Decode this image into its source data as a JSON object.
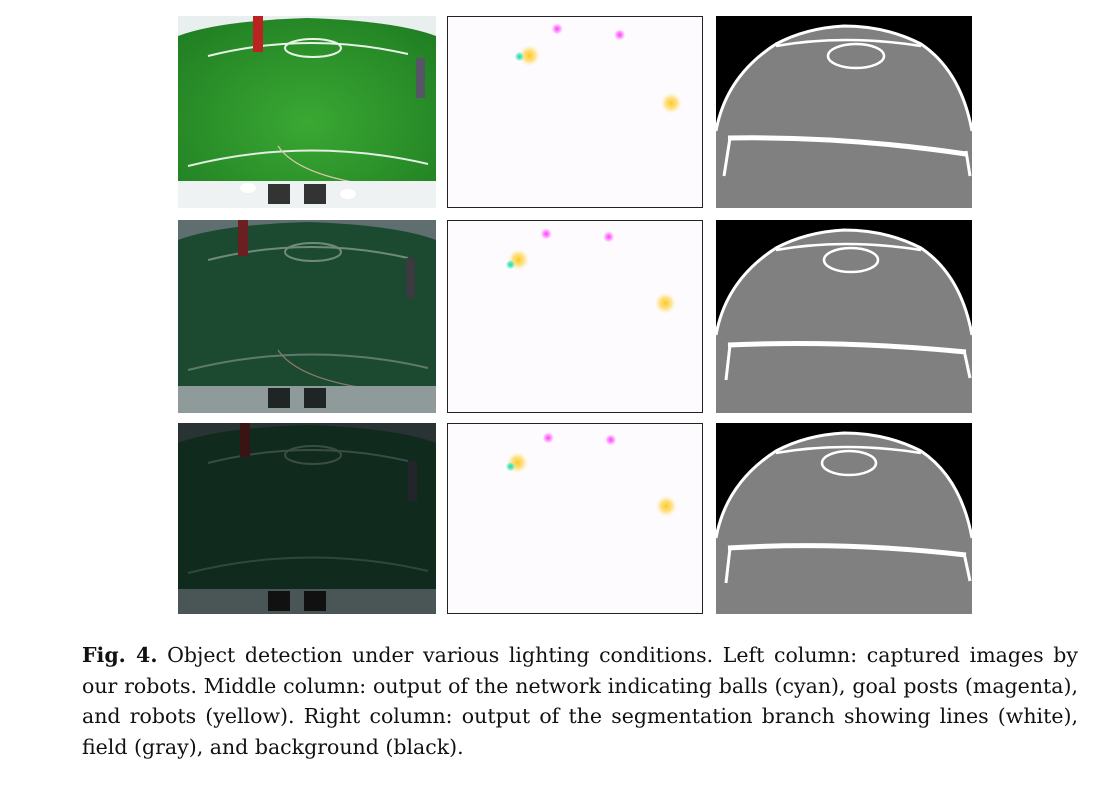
{
  "figure": {
    "label": "Fig. 4.",
    "caption": "Object detection under various lighting conditions. Left column: captured im­ages by our robots. Middle column: output of the network indicating balls (cyan), goal posts (magenta), and robots (yellow). Right column: output of the segmentation branch showing lines (white), field (gray), and background (black).",
    "rows": [
      {
        "condition": "bright",
        "brightness": 1.0
      },
      {
        "condition": "dim",
        "brightness": 0.45
      },
      {
        "condition": "dark",
        "brightness": 0.22
      }
    ]
  },
  "colors": {
    "ball": "#1fe0b0",
    "goal_post": "#ff40ff",
    "robot": "#ffcc33",
    "line": "#ffffff",
    "field": "#808080",
    "background": "#000000",
    "grass": "#2f9a2a"
  }
}
